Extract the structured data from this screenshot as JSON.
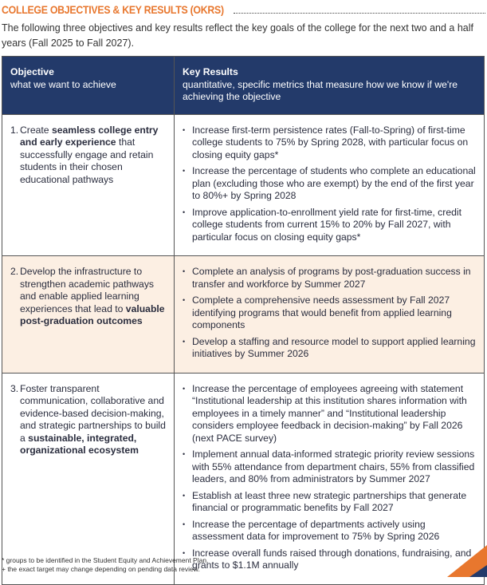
{
  "title": "COLLEGE OBJECTIVES & KEY RESULTS (OKRS)",
  "intro": "The following three objectives and key results reflect the key goals of the college for the next two and a half years (Fall 2025 to Fall 2027).",
  "header": {
    "objective": "Objective",
    "objective_sub": "what we want to achieve",
    "kr": "Key Results",
    "kr_sub": "quantitative, specific metrics that measure how we know if we're achieving the objective"
  },
  "rows": [
    {
      "num": "1.",
      "pre": "Create ",
      "bold": "seamless college entry and early experience",
      "post": " that successfully engage and retain students in their chosen educational pathways",
      "results": [
        "Increase first-term persistence rates (Fall-to-Spring) of first-time college students to 75% by Spring 2028, with particular focus on closing equity gaps*",
        "Increase the percentage of students who complete an educational plan (excluding those who are exempt) by the end of the first year to 80%+ by Spring 2028",
        "Improve application-to-enrollment yield rate for first-time, credit college students from current 15% to 20% by Fall 2027, with particular focus on closing equity gaps*"
      ]
    },
    {
      "num": "2.",
      "pre": "Develop the infrastructure to strengthen academic pathways and enable applied learning experiences that lead to ",
      "bold": "valuable post-graduation outcomes",
      "post": "",
      "results": [
        "Complete an analysis of programs by post-graduation success in transfer and workforce by Summer 2027",
        "Complete a comprehensive needs assessment by Fall 2027 identifying programs that would benefit from applied learning components",
        "Develop a staffing and resource model to support applied learning initiatives by Summer 2026"
      ]
    },
    {
      "num": "3.",
      "pre": "Foster transparent communication, collaborative and evidence-based decision-making, and strategic partnerships to build a ",
      "bold": "sustainable, integrated, organizational ecosystem",
      "post": "",
      "results": [
        "Increase the percentage of employees agreeing with statement “Institutional leadership at this institution shares information with employees in a timely manner” and “Institutional leadership considers employee feedback in decision-making” by Fall 2026 (next PACE survey)",
        "Implement annual data-informed strategic priority review sessions with 55% attendance from department chairs, 55% from classified leaders, and 80% from administrators by Summer 2027",
        "Establish at least three new strategic partnerships that generate financial or programmatic benefits by Fall 2027",
        "Increase the percentage of departments actively using assessment data for improvement to 75% by Spring 2026",
        "Increase overall funds raised through donations, fundraising, and grants to $1.1M annually"
      ]
    }
  ],
  "footnotes": [
    "* groups to be identified in the Student Equity and Achievement Plan.",
    "+ the exact target may change depending on pending data review."
  ],
  "colors": {
    "accent": "#e8772e",
    "header": "#233a6a",
    "alt_row": "#fcefe3"
  }
}
